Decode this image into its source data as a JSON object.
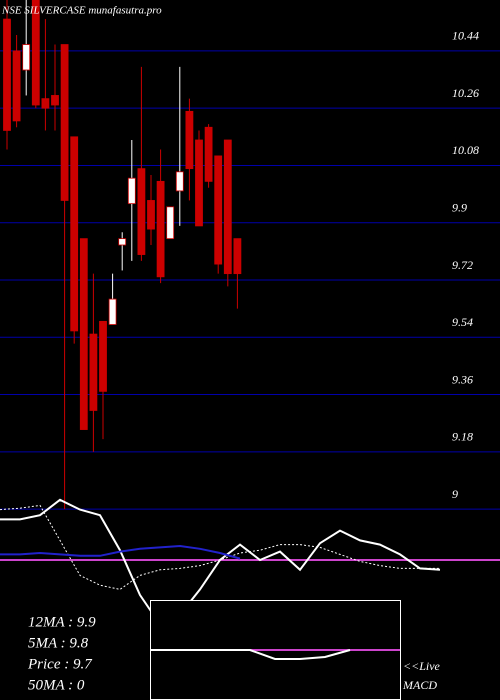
{
  "chart_data": [
    {
      "type": "candlestick",
      "title": "NSE SILVERCASE munafasutra.pro",
      "open": [
        10.54,
        10.44,
        10.38,
        10.6,
        10.29,
        10.3,
        10.46,
        10.17,
        9.85,
        9.55,
        9.59,
        9.58,
        9.83,
        9.96,
        10.07,
        9.97,
        10.03,
        9.85,
        10.0,
        10.25,
        10.16,
        10.2,
        10.11,
        10.16,
        9.85
      ],
      "high": [
        10.6,
        10.49,
        10.6,
        10.6,
        10.54,
        10.46,
        10.46,
        10.17,
        9.85,
        9.74,
        9.59,
        9.74,
        9.87,
        10.16,
        10.39,
        10.05,
        10.13,
        9.95,
        10.39,
        10.29,
        10.19,
        10.21,
        10.11,
        10.16,
        9.85
      ],
      "low": [
        10.13,
        10.2,
        10.3,
        10.26,
        10.19,
        10.19,
        9.0,
        9.52,
        9.25,
        9.18,
        9.22,
        9.58,
        9.75,
        9.78,
        9.78,
        9.83,
        9.71,
        9.85,
        9.89,
        9.97,
        9.89,
        10.01,
        9.74,
        9.7,
        9.63
      ],
      "close": [
        10.19,
        10.22,
        10.46,
        10.27,
        10.26,
        10.27,
        9.97,
        9.56,
        9.25,
        9.31,
        9.37,
        9.66,
        9.85,
        10.04,
        9.8,
        9.88,
        9.73,
        9.95,
        10.06,
        10.07,
        9.89,
        10.03,
        9.77,
        9.74,
        9.74
      ],
      "up_color": "#ffffff",
      "down_color": "#cc0000",
      "grid_color": "#0000aa",
      "ylim": [
        8.84,
        10.6
      ],
      "yticks": [
        10.44,
        10.26,
        10.08,
        9.9,
        9.72,
        9.54,
        9.36,
        9.18,
        9
      ],
      "grid": true
    },
    {
      "type": "line",
      "ylim": [
        0,
        100
      ],
      "series": [
        {
          "color": "#ffffff",
          "style": "solid",
          "values": [
            79,
            79,
            82,
            93,
            86,
            82,
            57,
            25,
            4,
            11,
            29,
            50,
            61,
            50,
            56,
            43,
            62,
            71,
            64,
            61,
            54,
            44,
            43
          ]
        },
        {
          "color": "#ffffff",
          "style": "dotted",
          "values": [
            86,
            87,
            89,
            64,
            39,
            32,
            29,
            39,
            43,
            44,
            46,
            50,
            55,
            57,
            61,
            61,
            59,
            54,
            49,
            46,
            44,
            44,
            44
          ]
        },
        {
          "color": "#2222cc",
          "style": "solid",
          "values": [
            54,
            54,
            55,
            54,
            53,
            53,
            56,
            58,
            59,
            60,
            58,
            55,
            51,
            null,
            null,
            null,
            null,
            null,
            null,
            null,
            null,
            null,
            null
          ]
        }
      ],
      "baseline": 50,
      "baseline_color": "#cc44cc",
      "annotations": [
        "12MA : 9.9",
        "5MA : 9.8",
        "Price   : 9.7",
        "50MA : 0"
      ]
    },
    {
      "type": "line",
      "ylim": [
        -50,
        50
      ],
      "series": [
        {
          "color": "#cc44cc",
          "style": "solid",
          "values": [
            0,
            0,
            0,
            0,
            0,
            0,
            0,
            0,
            0,
            0,
            0
          ]
        },
        {
          "color": "#ffffff",
          "style": "solid",
          "values": [
            0,
            0,
            0,
            0,
            0,
            -9,
            -9,
            -7,
            0,
            null,
            null
          ]
        }
      ],
      "annotations": [
        "<<Live",
        "MACD"
      ]
    }
  ]
}
